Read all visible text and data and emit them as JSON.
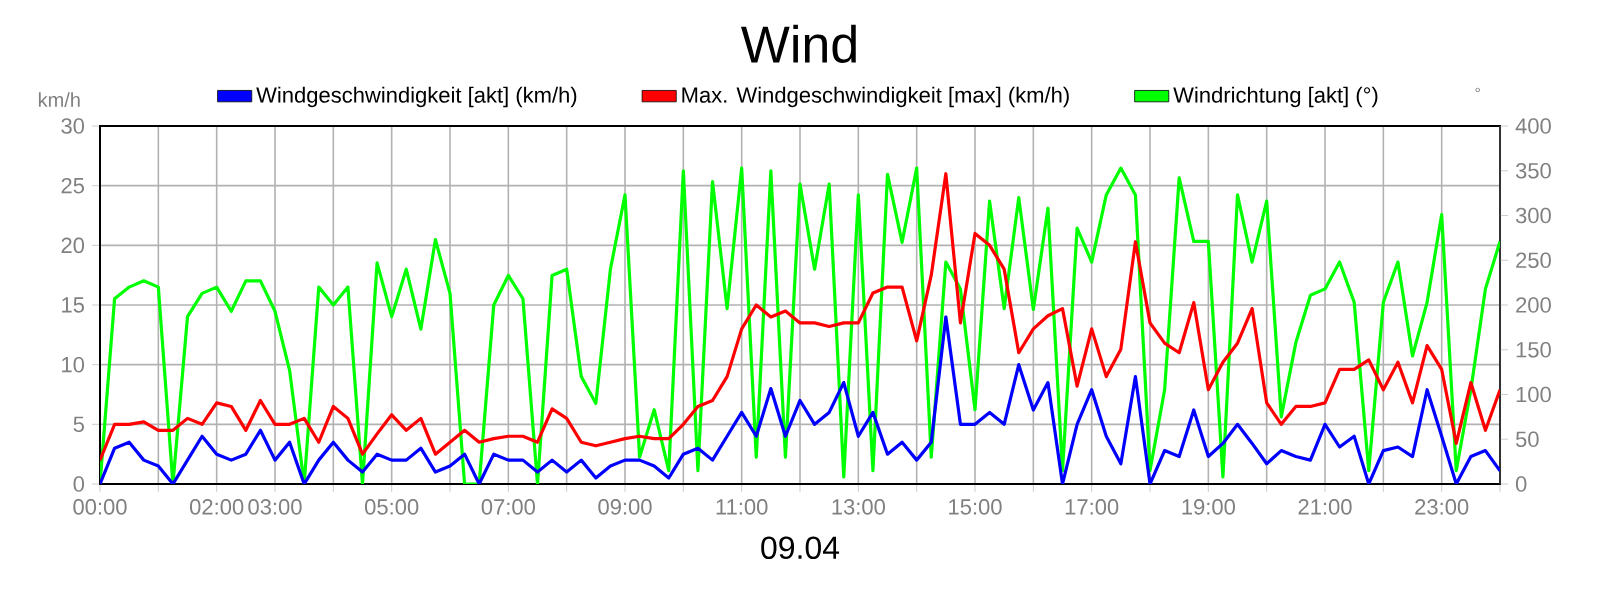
{
  "chart_data": {
    "type": "line",
    "title": "Wind",
    "xlabel": "09.04",
    "ylabel": "km/h",
    "y2label": "°",
    "x": [
      0,
      0.25,
      0.5,
      0.75,
      1,
      1.25,
      1.5,
      1.75,
      2,
      2.25,
      2.5,
      2.75,
      3,
      3.25,
      3.5,
      3.75,
      4,
      4.25,
      4.5,
      4.75,
      5,
      5.25,
      5.5,
      5.75,
      6,
      6.25,
      6.5,
      6.75,
      7,
      7.25,
      7.5,
      7.75,
      8,
      8.25,
      8.5,
      8.75,
      9,
      9.25,
      9.5,
      9.75,
      10,
      10.25,
      10.5,
      10.75,
      11,
      11.25,
      11.5,
      11.75,
      12,
      12.25,
      12.5,
      12.75,
      13,
      13.25,
      13.5,
      13.75,
      14,
      14.25,
      14.5,
      14.75,
      15,
      15.25,
      15.5,
      15.75,
      16,
      16.25,
      16.5,
      16.75,
      17,
      17.25,
      17.5,
      17.75,
      18,
      18.25,
      18.5,
      18.75,
      19,
      19.25,
      19.5,
      19.75,
      20,
      20.25,
      20.5,
      20.75,
      21,
      21.25,
      21.5,
      21.75,
      22,
      22.25,
      22.5,
      22.75,
      23,
      23.25,
      23.5,
      23.75,
      24
    ],
    "xlim": [
      0,
      24
    ],
    "xticks": [
      {
        "value": 0,
        "label": "00:00"
      },
      {
        "value": 1,
        "label": null
      },
      {
        "value": 2,
        "label": "02:00"
      },
      {
        "value": 3,
        "label": "03:00"
      },
      {
        "value": 4,
        "label": null
      },
      {
        "value": 5,
        "label": "05:00"
      },
      {
        "value": 6,
        "label": null
      },
      {
        "value": 7,
        "label": "07:00"
      },
      {
        "value": 8,
        "label": null
      },
      {
        "value": 9,
        "label": "09:00"
      },
      {
        "value": 10,
        "label": null
      },
      {
        "value": 11,
        "label": "11:00"
      },
      {
        "value": 12,
        "label": null
      },
      {
        "value": 13,
        "label": "13:00"
      },
      {
        "value": 14,
        "label": null
      },
      {
        "value": 15,
        "label": "15:00"
      },
      {
        "value": 16,
        "label": null
      },
      {
        "value": 17,
        "label": "17:00"
      },
      {
        "value": 18,
        "label": null
      },
      {
        "value": 19,
        "label": "19:00"
      },
      {
        "value": 20,
        "label": null
      },
      {
        "value": 21,
        "label": "21:00"
      },
      {
        "value": 22,
        "label": null
      },
      {
        "value": 23,
        "label": "23:00"
      },
      {
        "value": 24,
        "label": null
      }
    ],
    "ylim": [
      0,
      30
    ],
    "yticks": [
      0,
      5,
      10,
      15,
      20,
      25,
      30
    ],
    "y2lim": [
      0,
      400
    ],
    "y2ticks": [
      0,
      50,
      100,
      150,
      200,
      250,
      300,
      350,
      400
    ],
    "grid": true,
    "legend": "top",
    "series": [
      {
        "name": "Windgeschwindigkeit [akt] (km/h)",
        "color": "#0000ff",
        "axis": "y",
        "values": [
          0,
          3,
          3.5,
          2,
          1.5,
          0,
          2,
          4,
          2.5,
          2,
          2.5,
          4.5,
          2,
          3.5,
          0,
          2,
          3.5,
          2,
          1,
          2.5,
          2,
          2,
          3,
          1,
          1.5,
          2.5,
          0,
          2.5,
          2,
          2,
          1,
          2,
          1,
          2,
          0.5,
          1.5,
          2,
          2,
          1.5,
          0.5,
          2.5,
          3,
          2,
          4,
          6,
          4,
          8,
          4,
          7,
          5,
          6,
          8.5,
          4,
          6,
          2.5,
          3.5,
          2,
          3.5,
          14,
          5,
          5,
          6,
          5,
          10,
          6.2,
          8.5,
          0,
          5,
          7.9,
          4,
          1.7,
          9,
          0,
          2.8,
          2.3,
          6.2,
          2.3,
          3.4,
          5,
          3.4,
          1.7,
          2.8,
          2.3,
          2,
          5,
          3.1,
          4,
          0,
          2.8,
          3.1,
          2.3,
          7.9,
          4,
          0,
          2.3,
          2.8,
          1.1
        ]
      },
      {
        "name": "Max. Windgeschwindigkeit [max] (km/h)",
        "color": "#ff0000",
        "axis": "y",
        "values": [
          2,
          5,
          5,
          5.2,
          4.5,
          4.5,
          5.5,
          5,
          6.8,
          6.5,
          4.5,
          7,
          5,
          5,
          5.5,
          3.5,
          6.5,
          5.5,
          2.5,
          4.2,
          5.8,
          4.5,
          5.5,
          2.5,
          3.5,
          4.5,
          3.5,
          3.8,
          4,
          4,
          3.5,
          6.3,
          5.5,
          3.5,
          3.2,
          3.5,
          3.8,
          4,
          3.8,
          3.8,
          5,
          6.5,
          7,
          9,
          13,
          15,
          14,
          14.5,
          13.5,
          13.5,
          13.2,
          13.5,
          13.5,
          16,
          16.5,
          16.5,
          12,
          17.5,
          26,
          13.5,
          21,
          20,
          18,
          11,
          13,
          14.1,
          14.7,
          8.2,
          13,
          9,
          11.3,
          20.3,
          13.5,
          11.8,
          11,
          15.2,
          7.9,
          10.2,
          11.8,
          14.7,
          6.8,
          5,
          6.5,
          6.5,
          6.8,
          9.6,
          9.6,
          10.4,
          7.9,
          10.2,
          6.8,
          11.6,
          9.6,
          3.4,
          8.5,
          4.5,
          7.9
        ]
      },
      {
        "name": "Windrichtung [akt] (°)",
        "color": "#00ff00",
        "axis": "y2",
        "values": [
          0,
          207,
          220,
          227,
          220,
          0,
          187,
          213,
          220,
          193,
          227,
          227,
          193,
          127,
          0,
          220,
          200,
          220,
          0,
          247,
          187,
          240,
          173,
          273,
          213,
          0,
          0,
          200,
          233,
          207,
          0,
          233,
          240,
          120,
          90,
          240,
          323,
          30,
          83,
          15,
          350,
          15,
          338,
          196,
          353,
          30,
          350,
          30,
          335,
          240,
          335,
          8,
          323,
          15,
          346,
          270,
          353,
          30,
          248,
          218,
          83,
          316,
          196,
          320,
          195,
          308,
          15,
          286,
          248,
          323,
          353,
          323,
          15,
          105,
          342,
          271,
          271,
          8,
          323,
          248,
          316,
          75,
          158,
          211,
          218,
          248,
          203,
          15,
          203,
          248,
          143,
          203,
          301,
          15,
          105,
          218,
          271
        ]
      }
    ]
  }
}
